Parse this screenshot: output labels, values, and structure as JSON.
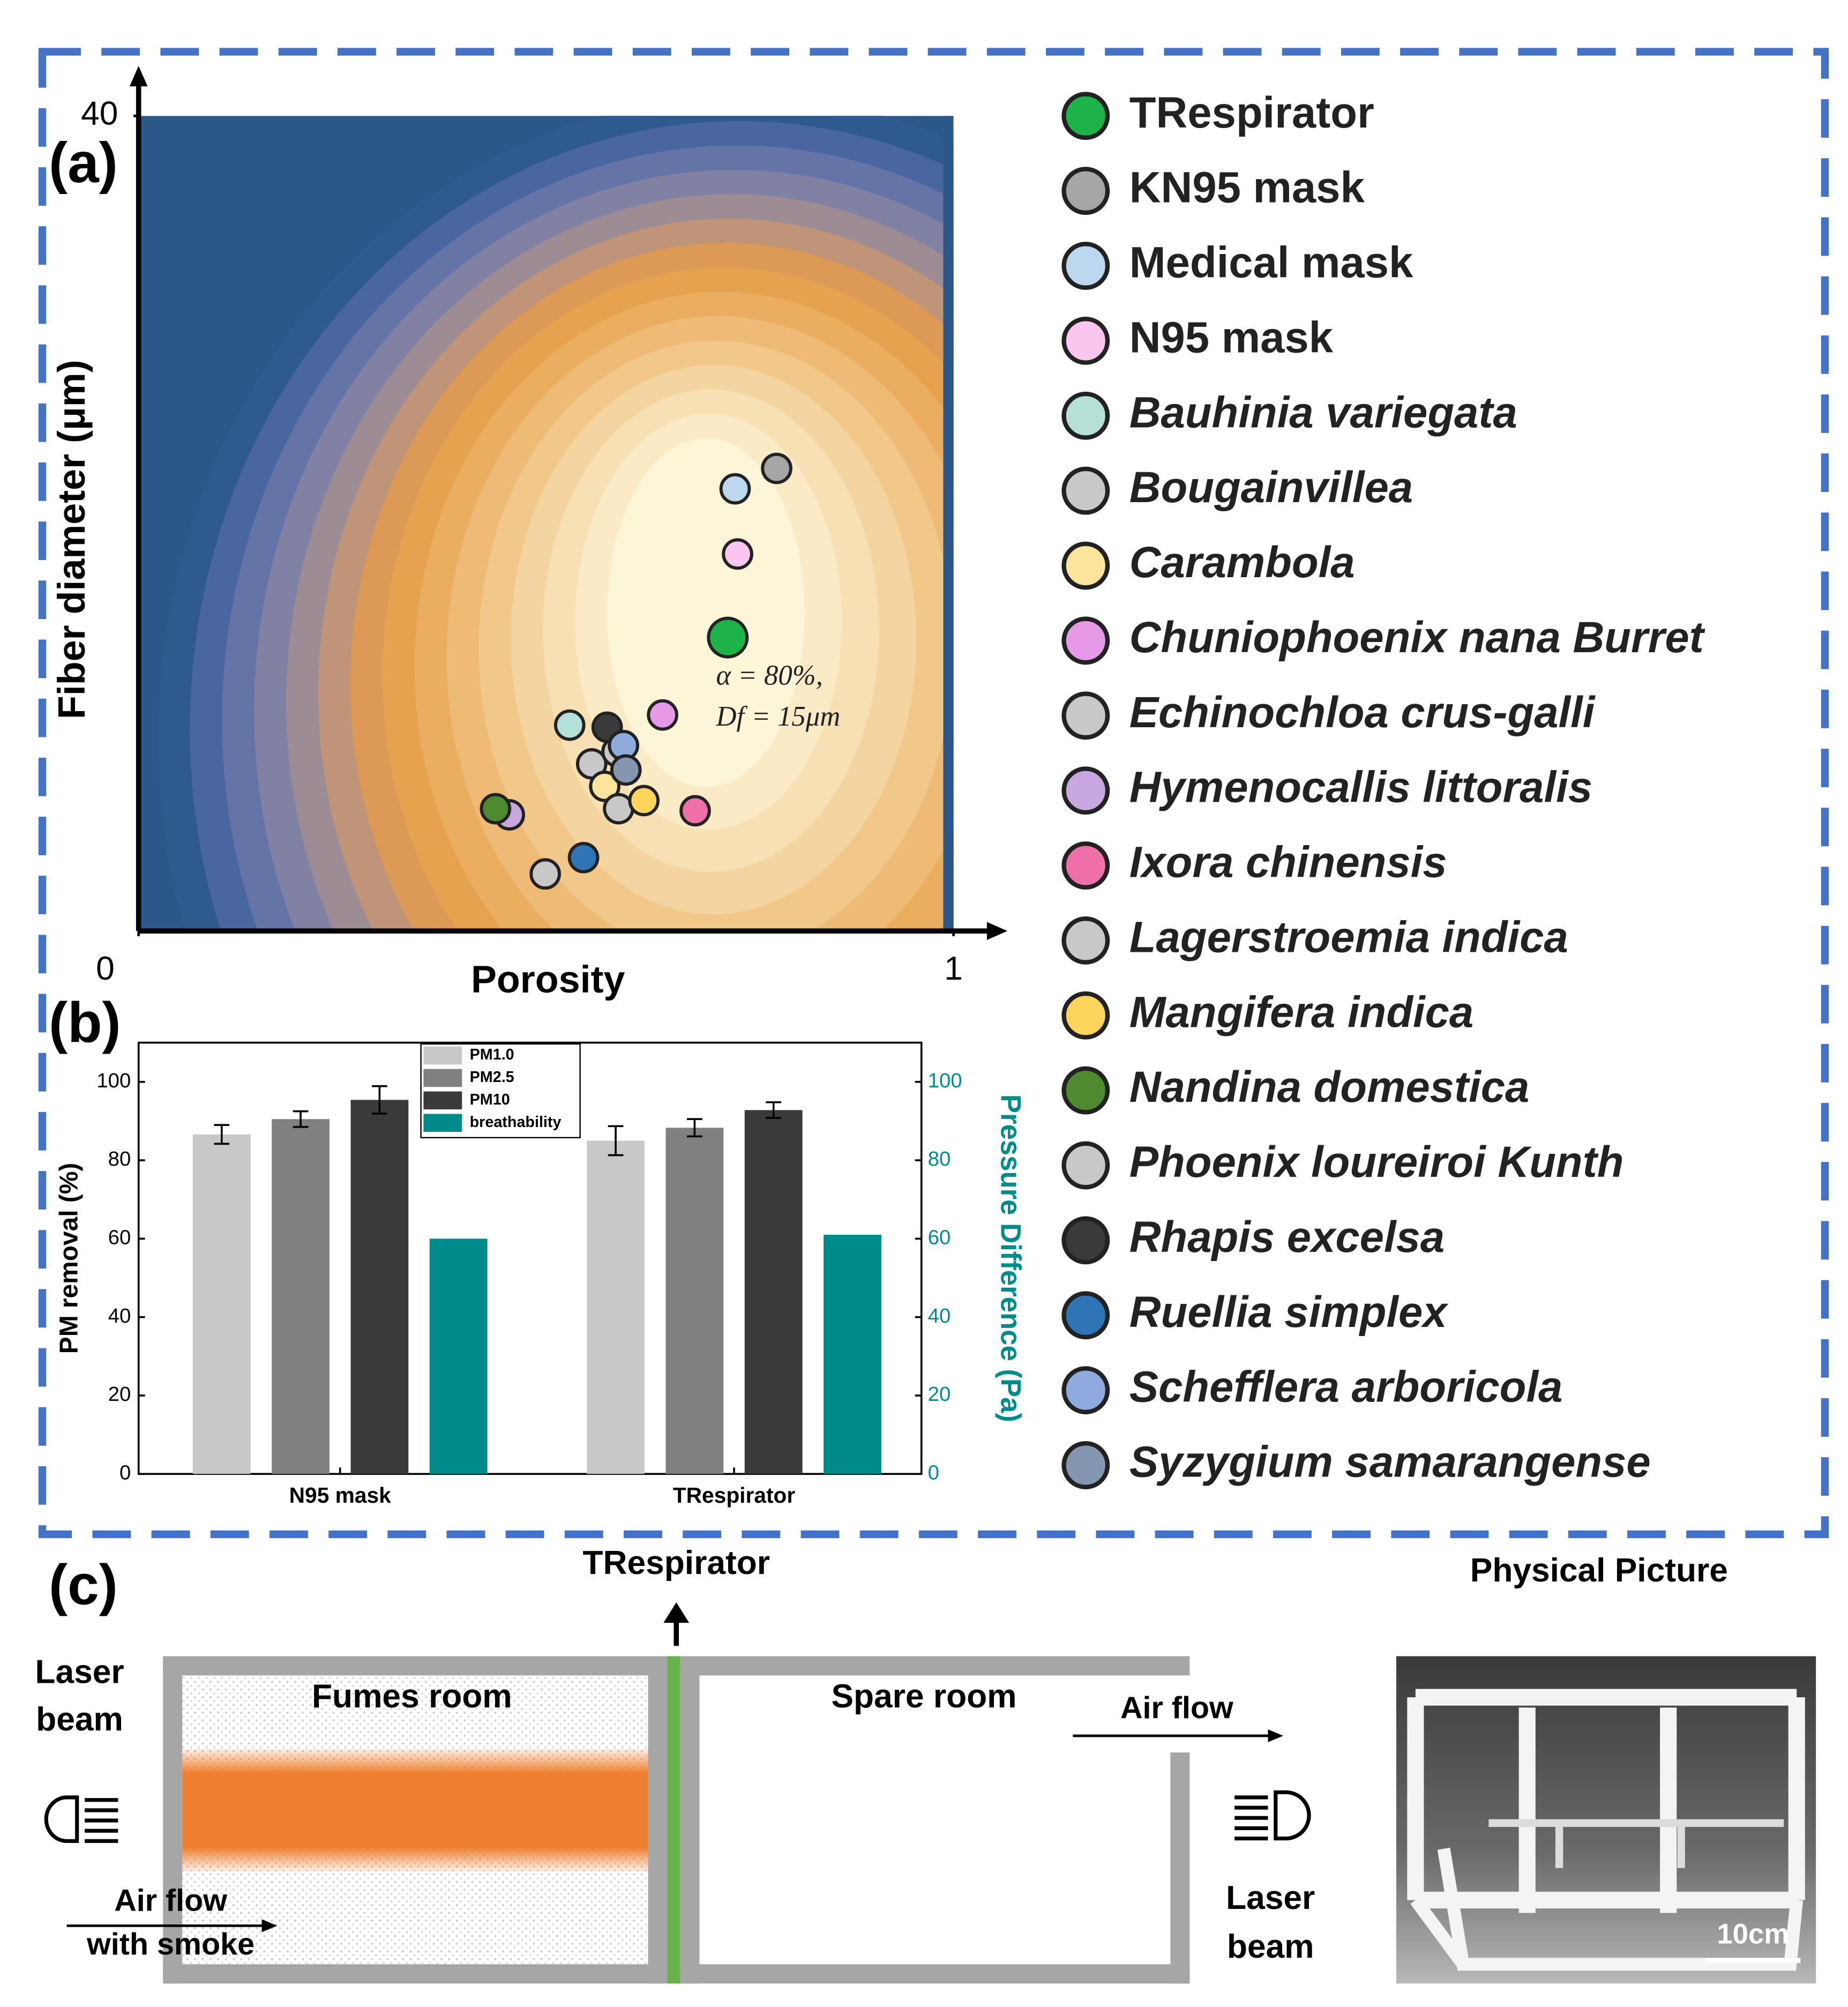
{
  "chart_data": [
    {
      "type": "scatter",
      "label": "(a)",
      "xlabel": "Porosity",
      "ylabel": "Fiber diameter (μm)",
      "xlim": [
        0,
        1
      ],
      "ylim": [
        0,
        40
      ],
      "xticks": [
        0,
        1
      ],
      "yticks": [
        40
      ],
      "annotations": [
        "α = 80%,",
        "Df = 15μm"
      ],
      "series": [
        {
          "name": "TRespirator",
          "color": "#1db34a",
          "x": [
            0.723
          ],
          "y": [
            14.4
          ]
        },
        {
          "name": "KN95 mask",
          "color": "#a6a6a6",
          "x": [
            0.783
          ],
          "y": [
            22.7
          ]
        },
        {
          "name": "Medical mask",
          "color": "#bdd7ee",
          "x": [
            0.732
          ],
          "y": [
            21.7
          ]
        },
        {
          "name": "N95 mask",
          "color": "#f9c6f0",
          "x": [
            0.735
          ],
          "y": [
            18.5
          ]
        },
        {
          "name": "Bauhinia variegata",
          "color": "#b4e0d8",
          "x": [
            0.529
          ],
          "y": [
            10.1
          ]
        },
        {
          "name": "Bougainvillea",
          "color": "#c8c8c8",
          "x": [
            0.556
          ],
          "y": [
            8.2
          ]
        },
        {
          "name": "Carambola",
          "color": "#fde49c",
          "x": [
            0.572
          ],
          "y": [
            7.1
          ]
        },
        {
          "name": "Chuniophoenix nana Burret",
          "color": "#e49ae6",
          "x": [
            0.643
          ],
          "y": [
            10.6
          ]
        },
        {
          "name": "Echinochloa crus-galli",
          "color": "#c8c8c8",
          "x": [
            0.589
          ],
          "y": [
            6.0
          ]
        },
        {
          "name": "Hymenocallis littoralis",
          "color": "#c9a8e0",
          "x": [
            0.455
          ],
          "y": [
            5.7
          ]
        },
        {
          "name": "Ixora chinensis",
          "color": "#ef6fa8",
          "x": [
            0.683
          ],
          "y": [
            5.9
          ]
        },
        {
          "name": "Lagerstroemia indica",
          "color": "#c8c8c8",
          "x": [
            0.587
          ],
          "y": [
            8.8
          ]
        },
        {
          "name": "Mangifera indica",
          "color": "#fdd45c",
          "x": [
            0.62
          ],
          "y": [
            6.4
          ]
        },
        {
          "name": "Nandina domestica",
          "color": "#4e8a30",
          "x": [
            0.438
          ],
          "y": [
            6.0
          ]
        },
        {
          "name": "Phoenix loureiroi Kunth",
          "color": "#c8c8c8",
          "x": [
            0.499
          ],
          "y": [
            2.8
          ]
        },
        {
          "name": "Rhapis excelsa",
          "color": "#3a3a3a",
          "x": [
            0.575
          ],
          "y": [
            10.0
          ]
        },
        {
          "name": "Ruellia simplex",
          "color": "#2e75b6",
          "x": [
            0.546
          ],
          "y": [
            3.6
          ]
        },
        {
          "name": "Schefflera arboricola",
          "color": "#8faadc",
          "x": [
            0.595
          ],
          "y": [
            9.1
          ]
        },
        {
          "name": "Syzygium samarangense",
          "color": "#8496b0",
          "x": [
            0.598
          ],
          "y": [
            7.9
          ]
        }
      ]
    },
    {
      "type": "bar",
      "label": "(b)",
      "categories": [
        "N95 mask",
        "TRespirator"
      ],
      "ylabel": "PM removal (%)",
      "y2label": "Pressure Difference (Pa)",
      "ylim": [
        0,
        110
      ],
      "yticks": [
        0,
        20,
        40,
        60,
        80,
        100
      ],
      "y2lim": [
        0,
        110
      ],
      "y2ticks": [
        0,
        20,
        40,
        60,
        80,
        100
      ],
      "legend": "upper center",
      "series": [
        {
          "name": "PM1.0",
          "color": "#c8c8c8",
          "values": [
            86.6,
            85
          ],
          "errors": [
            2.4,
            3.7
          ]
        },
        {
          "name": "PM2.5",
          "color": "#808080",
          "values": [
            90.5,
            88.3
          ],
          "errors": [
            2.0,
            2.2
          ]
        },
        {
          "name": "PM10",
          "color": "#3a3a3a",
          "values": [
            95.4,
            92.8
          ],
          "errors": [
            3.5,
            2.0
          ]
        },
        {
          "name": "breathability",
          "color": "#008b8b",
          "axis": "y2",
          "values": [
            60,
            61
          ]
        }
      ]
    }
  ],
  "diagram": {
    "label": "(c)",
    "filter": "TRespirator",
    "photo_title": "Physical Picture",
    "fumes_room": "Fumes room",
    "spare_room": "Spare room",
    "air_flow_out": "Air flow",
    "air_flow_in": [
      "Air flow",
      "with smoke"
    ],
    "laser_left": [
      "Laser",
      "beam"
    ],
    "laser_right": [
      "Laser",
      "beam"
    ],
    "scale_bar": "10cm"
  }
}
